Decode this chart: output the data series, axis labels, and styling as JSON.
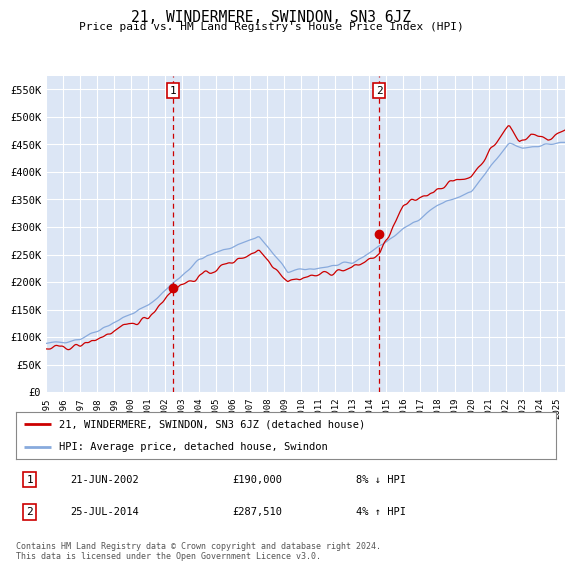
{
  "title": "21, WINDERMERE, SWINDON, SN3 6JZ",
  "subtitle": "Price paid vs. HM Land Registry's House Price Index (HPI)",
  "ylabel_ticks": [
    "£0",
    "£50K",
    "£100K",
    "£150K",
    "£200K",
    "£250K",
    "£300K",
    "£350K",
    "£400K",
    "£450K",
    "£500K",
    "£550K"
  ],
  "ytick_values": [
    0,
    50000,
    100000,
    150000,
    200000,
    250000,
    300000,
    350000,
    400000,
    450000,
    500000,
    550000
  ],
  "ylim": [
    0,
    575000
  ],
  "xlim_start": 1995.0,
  "xlim_end": 2025.5,
  "background_color": "#dce6f5",
  "grid_color": "#ffffff",
  "ann1_x": 2002.47,
  "ann1_y": 190000,
  "ann2_x": 2014.57,
  "ann2_y": 287510,
  "legend_line1": "21, WINDERMERE, SWINDON, SN3 6JZ (detached house)",
  "legend_line2": "HPI: Average price, detached house, Swindon",
  "footer": "Contains HM Land Registry data © Crown copyright and database right 2024.\nThis data is licensed under the Open Government Licence v3.0.",
  "red_color": "#cc0000",
  "blue_color": "#88aadd"
}
